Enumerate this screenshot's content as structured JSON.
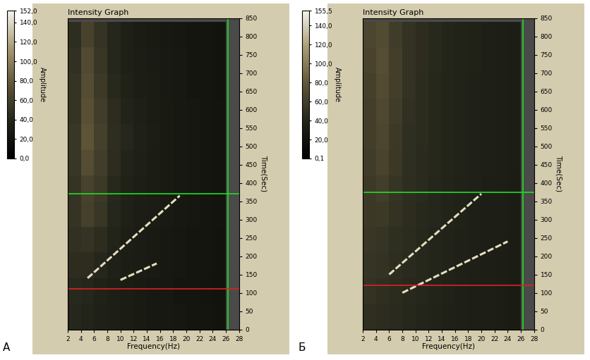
{
  "chart_data": [
    {
      "type": "heatmap",
      "panel_label": "А",
      "title": "Intensity Graph",
      "x_label": "Frequency(Hz)",
      "y_label": "Time(Sec)",
      "colorbar_label": "Amplitude",
      "xlim": [
        2,
        28
      ],
      "xticks": [
        2,
        4,
        6,
        8,
        10,
        12,
        14,
        16,
        18,
        20,
        22,
        24,
        26,
        28
      ],
      "ylim": [
        0,
        850
      ],
      "yticks": [
        0,
        50,
        100,
        150,
        200,
        250,
        300,
        350,
        400,
        450,
        500,
        550,
        600,
        650,
        700,
        750,
        800,
        850
      ],
      "grid": false,
      "clim": [
        0,
        152
      ],
      "cticks": [
        {
          "value": 0,
          "label": "0,0"
        },
        {
          "value": 20,
          "label": "20,0"
        },
        {
          "value": 40,
          "label": "40,0"
        },
        {
          "value": 60,
          "label": "60,0"
        },
        {
          "value": 80,
          "label": "80,0"
        },
        {
          "value": 100,
          "label": "100,0"
        },
        {
          "value": 120,
          "label": "120,0"
        },
        {
          "value": 140,
          "label": "140,0"
        },
        {
          "value": 152,
          "label": "152,0"
        }
      ],
      "x_edges": [
        2,
        4,
        6,
        8,
        10,
        12,
        14,
        16,
        18,
        20,
        22,
        24,
        26
      ],
      "y_edges": [
        0,
        70,
        140,
        210,
        280,
        350,
        420,
        490,
        560,
        630,
        700,
        770,
        840
      ],
      "cells": [
        [
          40,
          38,
          35,
          33,
          30,
          28,
          26,
          25,
          24,
          22,
          22,
          20
        ],
        [
          42,
          40,
          36,
          33,
          30,
          28,
          26,
          25,
          23,
          22,
          21,
          20
        ],
        [
          45,
          45,
          40,
          35,
          32,
          30,
          28,
          26,
          24,
          23,
          22,
          20
        ],
        [
          48,
          50,
          45,
          38,
          33,
          30,
          28,
          26,
          24,
          23,
          22,
          20
        ],
        [
          50,
          60,
          52,
          40,
          35,
          32,
          30,
          28,
          25,
          24,
          22,
          21
        ],
        [
          50,
          62,
          55,
          42,
          36,
          33,
          30,
          28,
          26,
          24,
          22,
          21
        ],
        [
          52,
          70,
          58,
          45,
          38,
          34,
          30,
          28,
          26,
          24,
          22,
          21
        ],
        [
          52,
          75,
          60,
          46,
          40,
          35,
          31,
          28,
          26,
          24,
          22,
          21
        ],
        [
          50,
          72,
          58,
          45,
          38,
          34,
          30,
          28,
          26,
          24,
          22,
          21
        ],
        [
          50,
          70,
          55,
          42,
          36,
          32,
          30,
          27,
          25,
          23,
          22,
          20
        ],
        [
          48,
          68,
          52,
          40,
          34,
          31,
          29,
          27,
          25,
          23,
          22,
          20
        ],
        [
          46,
          62,
          50,
          40,
          34,
          30,
          28,
          26,
          24,
          23,
          22,
          20
        ]
      ],
      "series": [
        {
          "x": [
            5,
            19
          ],
          "values": [
            140,
            365
          ],
          "color": "#e6dfc0"
        },
        {
          "x": [
            10,
            15.5
          ],
          "values": [
            135,
            180
          ],
          "color": "#e6dfc0"
        }
      ],
      "cursors": [
        {
          "axis": "y",
          "value": 370,
          "color": "#22dd22"
        },
        {
          "axis": "x",
          "value": 26.3,
          "color": "#22dd22"
        },
        {
          "axis": "y",
          "value": 110,
          "color": "#dd2222"
        },
        {
          "axis": "x",
          "value": 2,
          "color": "#dd2222"
        }
      ]
    },
    {
      "type": "heatmap",
      "panel_label": "Б",
      "title": "Intensity Graph",
      "x_label": "Frequency(Hz)",
      "y_label": "Time(Sec)",
      "colorbar_label": "Amplitude",
      "xlim": [
        2,
        28
      ],
      "xticks": [
        2,
        4,
        6,
        8,
        10,
        12,
        14,
        16,
        18,
        20,
        22,
        24,
        26,
        28
      ],
      "ylim": [
        0,
        850
      ],
      "yticks": [
        0,
        50,
        100,
        150,
        200,
        250,
        300,
        350,
        400,
        450,
        500,
        550,
        600,
        650,
        700,
        750,
        800,
        850
      ],
      "grid": false,
      "clim": [
        0.1,
        155.5
      ],
      "cticks": [
        {
          "value": 0.1,
          "label": "0,1"
        },
        {
          "value": 20,
          "label": "20,0"
        },
        {
          "value": 40,
          "label": "40,0"
        },
        {
          "value": 60,
          "label": "60,0"
        },
        {
          "value": 80,
          "label": "80,0"
        },
        {
          "value": 100,
          "label": "100,0"
        },
        {
          "value": 120,
          "label": "120,0"
        },
        {
          "value": 140,
          "label": "140,0"
        },
        {
          "value": 155.5,
          "label": "155,5"
        }
      ],
      "x_edges": [
        2,
        4,
        6,
        8,
        10,
        12,
        14,
        16,
        18,
        20,
        22,
        24,
        26
      ],
      "y_edges": [
        0,
        70,
        140,
        210,
        280,
        350,
        420,
        490,
        560,
        630,
        700,
        770,
        840
      ],
      "cells": [
        [
          48,
          46,
          44,
          42,
          40,
          38,
          36,
          35,
          34,
          33,
          32,
          30
        ],
        [
          50,
          48,
          45,
          43,
          41,
          39,
          37,
          35,
          34,
          33,
          32,
          30
        ],
        [
          52,
          50,
          47,
          44,
          42,
          40,
          38,
          36,
          35,
          34,
          32,
          31
        ],
        [
          54,
          52,
          48,
          45,
          42,
          40,
          38,
          36,
          35,
          34,
          33,
          31
        ],
        [
          55,
          56,
          50,
          46,
          43,
          41,
          39,
          37,
          35,
          34,
          33,
          31
        ],
        [
          56,
          60,
          52,
          47,
          44,
          41,
          39,
          37,
          36,
          34,
          33,
          31
        ],
        [
          58,
          64,
          55,
          48,
          44,
          42,
          40,
          38,
          36,
          35,
          33,
          32
        ],
        [
          60,
          66,
          56,
          48,
          45,
          42,
          40,
          38,
          36,
          35,
          33,
          32
        ],
        [
          60,
          68,
          58,
          49,
          45,
          42,
          40,
          38,
          36,
          35,
          33,
          32
        ],
        [
          62,
          70,
          60,
          50,
          45,
          42,
          40,
          38,
          36,
          35,
          34,
          32
        ],
        [
          64,
          72,
          60,
          50,
          46,
          43,
          40,
          38,
          37,
          35,
          34,
          32
        ],
        [
          66,
          70,
          58,
          50,
          46,
          43,
          40,
          38,
          37,
          35,
          34,
          32
        ]
      ],
      "series": [
        {
          "x": [
            6,
            20
          ],
          "values": [
            150,
            370
          ],
          "color": "#e6dfc0"
        },
        {
          "x": [
            8,
            24
          ],
          "values": [
            100,
            240
          ],
          "color": "#e6dfc0"
        }
      ],
      "cursors": [
        {
          "axis": "y",
          "value": 375,
          "color": "#22dd22"
        },
        {
          "axis": "x",
          "value": 26.3,
          "color": "#22dd22"
        },
        {
          "axis": "y",
          "value": 120,
          "color": "#dd2222"
        },
        {
          "axis": "x",
          "value": 2,
          "color": "#dd2222"
        }
      ]
    }
  ]
}
